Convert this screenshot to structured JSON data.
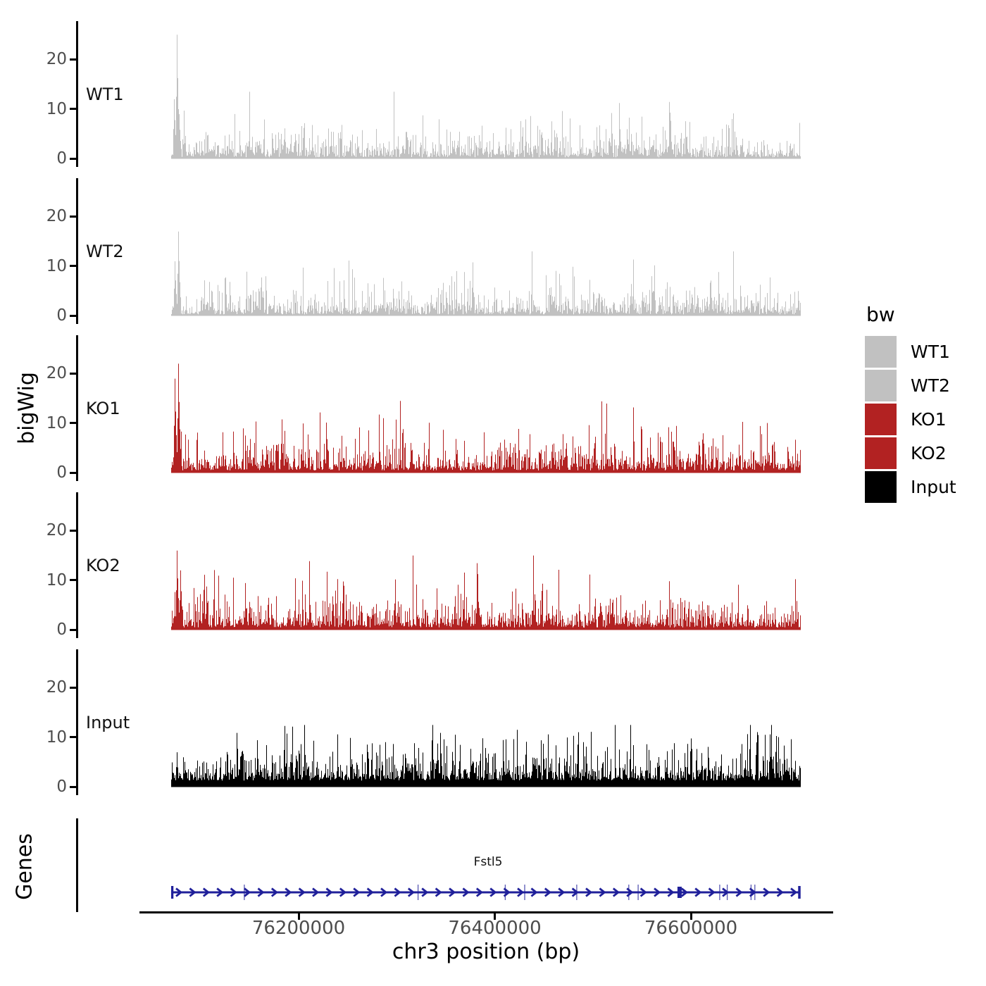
{
  "colors": {
    "background": "#ffffff",
    "axis": "#000000",
    "tick_label": "#4d4d4d",
    "text": "#000000",
    "gene": "#20209a"
  },
  "chart_data": {
    "type": "area",
    "description": "Stacked genome-browser coverage tracks (bigWig signal) with a gene model panel",
    "xlabel": "chr3 position (bp)",
    "x_range_bp": [
      76070000,
      76712000
    ],
    "x_ticks": [
      {
        "value": 76200000,
        "label": "76200000"
      },
      {
        "value": 76400000,
        "label": "76400000"
      },
      {
        "value": 76600000,
        "label": "76600000"
      }
    ],
    "y_ticks": [
      {
        "value": 0,
        "label": "0"
      },
      {
        "value": 10,
        "label": "10"
      },
      {
        "value": 20,
        "label": "20"
      }
    ],
    "y_range": [
      0,
      27
    ],
    "ylabel_tracks": "bigWig",
    "ylabel_genes": "Genes",
    "tracks": [
      {
        "name": "WT1",
        "color": "#c1c1c1",
        "max_peak": 25,
        "typical_level": 4,
        "seed": 101,
        "noise_base": 0.3,
        "noise_scale": 1.7,
        "noise_max": 13.5,
        "left_spikes": [
          [
            4,
            12
          ],
          [
            8,
            25
          ],
          [
            11,
            9
          ]
        ]
      },
      {
        "name": "WT2",
        "color": "#c1c1c1",
        "max_peak": 17,
        "typical_level": 4,
        "seed": 202,
        "noise_base": 0.3,
        "noise_scale": 1.7,
        "noise_max": 13.0,
        "left_spikes": [
          [
            5,
            11
          ],
          [
            10,
            17
          ]
        ]
      },
      {
        "name": "KO1",
        "color": "#b22222",
        "max_peak": 22,
        "typical_level": 5,
        "seed": 303,
        "noise_base": 0.5,
        "noise_scale": 1.9,
        "noise_max": 14.5,
        "left_spikes": [
          [
            5,
            19
          ],
          [
            10,
            22
          ]
        ]
      },
      {
        "name": "KO2",
        "color": "#b22222",
        "max_peak": 16,
        "typical_level": 5,
        "seed": 404,
        "noise_base": 0.5,
        "noise_scale": 1.9,
        "noise_max": 15.0,
        "left_spikes": [
          [
            8,
            16
          ],
          [
            13,
            12
          ]
        ]
      },
      {
        "name": "Input",
        "color": "#000000",
        "max_peak": 12.5,
        "typical_level": 5,
        "seed": 505,
        "noise_base": 1.3,
        "noise_scale": 2.2,
        "noise_max": 12.5,
        "left_spikes": []
      }
    ],
    "genes": [
      {
        "name": "Fstl5",
        "strand": "+",
        "color": "#20209a",
        "exon_marks_frac": [
          0.115,
          0.392,
          0.531,
          0.562,
          0.645,
          0.728,
          0.743,
          0.873,
          0.885,
          0.923,
          0.929
        ],
        "thick_exon_frac": 0.809
      }
    ]
  },
  "legend": {
    "title": "bw",
    "entries": [
      {
        "label": "WT1",
        "color": "#c1c1c1"
      },
      {
        "label": "WT2",
        "color": "#c1c1c1"
      },
      {
        "label": "KO1",
        "color": "#b22222"
      },
      {
        "label": "KO2",
        "color": "#b22222"
      },
      {
        "label": "Input",
        "color": "#000000"
      }
    ]
  }
}
